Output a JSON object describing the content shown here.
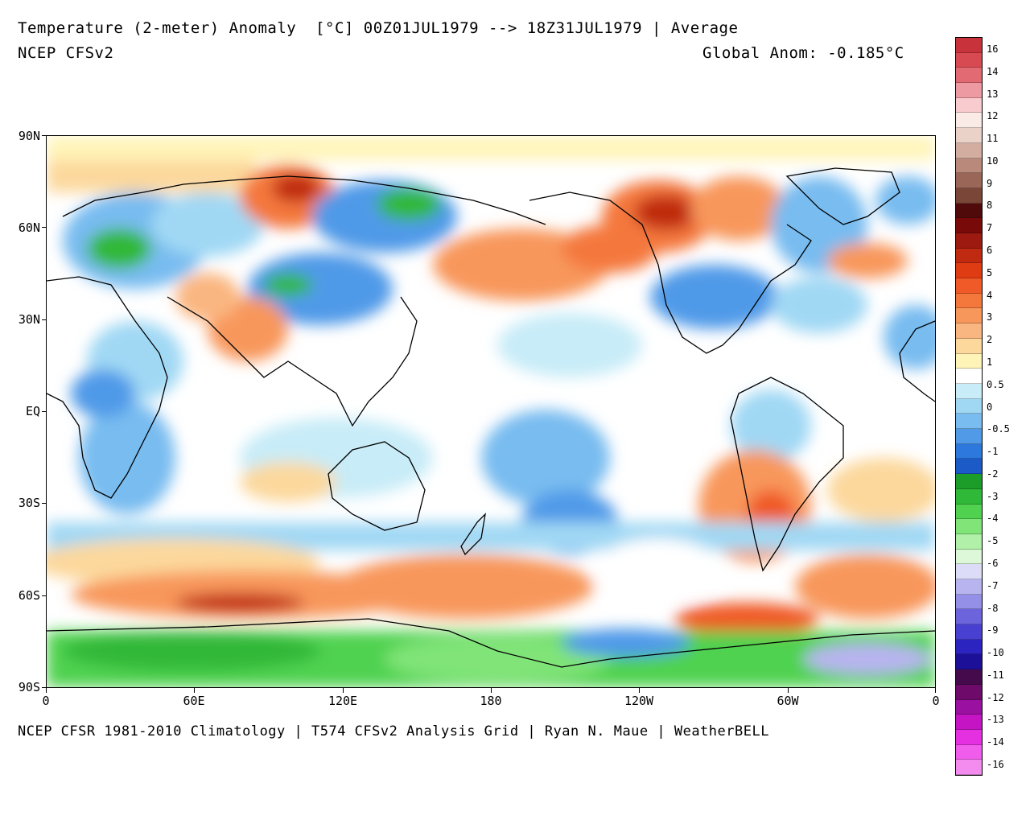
{
  "header": {
    "title": "Temperature (2-meter) Anomaly  [°C] 00Z01JUL1979 --> 18Z31JUL1979 | Average",
    "model": "NCEP CFSv2",
    "global_anom": "Global Anom: -0.185°C"
  },
  "footer": {
    "credit": "NCEP CFSR 1981-2010 Climatology | T574 CFSv2 Analysis Grid | Ryan N. Maue | WeatherBELL"
  },
  "axes": {
    "lat_labels": [
      "90N",
      "60N",
      "30N",
      "EQ",
      "30S",
      "60S",
      "90S"
    ],
    "lon_labels": [
      "0",
      "60E",
      "120E",
      "180",
      "120W",
      "60W",
      "0"
    ]
  },
  "colorbar": {
    "labels": [
      "16",
      "14",
      "13",
      "12",
      "11",
      "10",
      "9",
      "8",
      "7",
      "6",
      "5",
      "4",
      "3",
      "2",
      "1",
      "0.5",
      "0",
      "-0.5",
      "-1",
      "-2",
      "-3",
      "-4",
      "-5",
      "-6",
      "-7",
      "-8",
      "-9",
      "-10",
      "-11",
      "-12",
      "-13",
      "-14",
      "-16"
    ],
    "colors": [
      "#c8323a",
      "#d84a52",
      "#e26a72",
      "#ee9aa2",
      "#f8cccf",
      "#faebe6",
      "#ead2c8",
      "#d2ada0",
      "#b9897c",
      "#9a6658",
      "#7a4638",
      "#500a0a",
      "#780a0a",
      "#9c1a10",
      "#c02a10",
      "#e03c14",
      "#f05a28",
      "#f4783c",
      "#f8975c",
      "#fab680",
      "#fcd89c",
      "#fff4b8",
      "#ffffff",
      "#c8ecf8",
      "#a0d8f4",
      "#78bcf0",
      "#509ae8",
      "#2c78dc",
      "#1c5ac8",
      "#1c9c28",
      "#30b838",
      "#50d250",
      "#80e478",
      "#b0f0a8",
      "#dcf8d8",
      "#dcdcf8",
      "#b8b4f0",
      "#9490e8",
      "#6c64dc",
      "#4840d0",
      "#2c24c0",
      "#1c1098",
      "#440a4c",
      "#6e0a6a",
      "#9a10a0",
      "#c414c4",
      "#e430e0",
      "#f05ceb",
      "#f48cf0"
    ],
    "note": "colors listed top to bottom"
  },
  "map": {
    "variable": "Temperature (2-meter) Anomaly",
    "units": "°C",
    "period": "00Z01JUL1979 --> 18Z31JUL1979",
    "statistic": "Average",
    "projection": "cylindrical equidistant, centered on 180"
  }
}
